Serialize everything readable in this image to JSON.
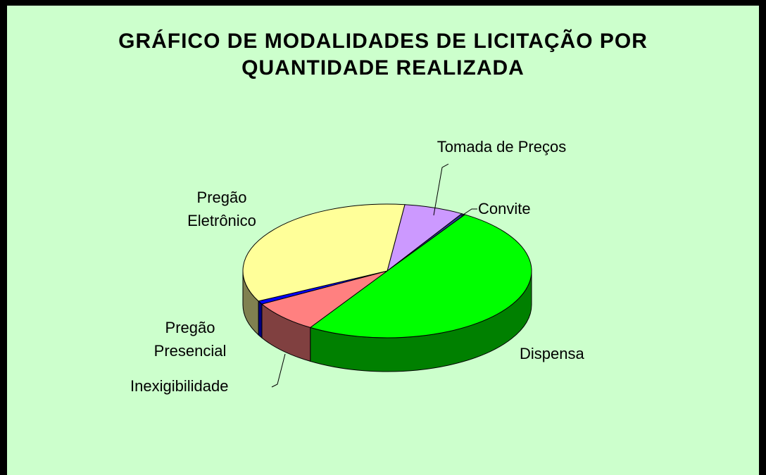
{
  "chart_data": {
    "type": "pie3d",
    "title": "GRÁFICO DE MODALIDADES DE LICITAÇÃO POR QUANTIDADE REALIZADA",
    "categories": [
      "Tomada de Preços",
      "Convite",
      "Dispensa",
      "Inexigibilidade",
      "Pregão Presencial",
      "Pregão Eletrônico"
    ],
    "values": [
      6.7,
      0.4,
      49.9,
      7.8,
      0.8,
      34.4
    ],
    "colors": [
      "#CC99FF",
      "#333399",
      "#00FF00",
      "#FF8080",
      "#0000FF",
      "#FFFF99"
    ],
    "side_colors": [
      "#8866AA",
      "#1A1A55",
      "#008000",
      "#804040",
      "#000080",
      "#808050"
    ]
  }
}
